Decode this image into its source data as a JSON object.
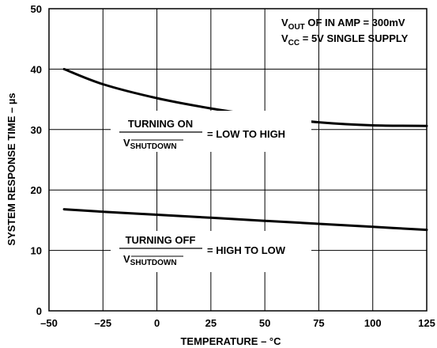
{
  "chart_data": {
    "type": "line",
    "xlabel": "TEMPERATURE – °C",
    "ylabel": "SYSTEM RESPONSE TIME – µs",
    "xlim": [
      -50,
      125
    ],
    "ylim": [
      0,
      50
    ],
    "x_ticks": [
      "–50",
      "–25",
      "0",
      "25",
      "50",
      "75",
      "100",
      "125"
    ],
    "y_ticks": [
      "0",
      "10",
      "20",
      "30",
      "40",
      "50"
    ],
    "grid": true,
    "series": [
      {
        "x": [
          -43,
          -25,
          0,
          25,
          50,
          75,
          100,
          125
        ],
        "values": [
          40.0,
          37.5,
          35.2,
          33.5,
          32.2,
          31.2,
          30.7,
          30.6
        ]
      },
      {
        "x": [
          -43,
          -25,
          0,
          25,
          50,
          75,
          100,
          125
        ],
        "values": [
          16.8,
          16.4,
          15.9,
          15.4,
          14.9,
          14.4,
          13.9,
          13.4
        ]
      }
    ],
    "conditions": {
      "line1_main": "V",
      "line1_sub": "OUT",
      "line1_rest": " OF IN AMP = 300mV",
      "line2_main": "V",
      "line2_sub": "CC",
      "line2_rest": " = 5V SINGLE SUPPLY"
    },
    "annotations": [
      {
        "numerator": "TURNING ON",
        "denominator_main": "V",
        "denominator_sub": "SHUTDOWN",
        "equals": "= LOW TO HIGH"
      },
      {
        "numerator": "TURNING OFF",
        "denominator_main": "V",
        "denominator_sub": "SHUTDOWN",
        "equals": "= HIGH TO LOW"
      }
    ]
  }
}
